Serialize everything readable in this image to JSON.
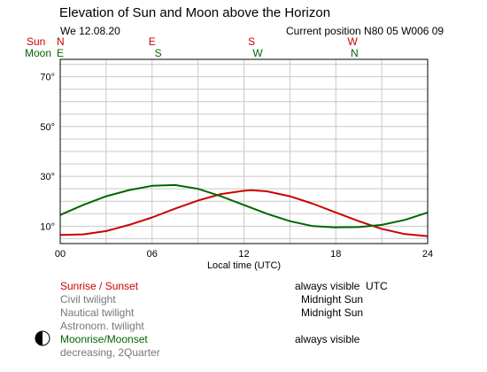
{
  "header": {
    "title": "Elevation of Sun and Moon above the Horizon",
    "date": "We 12.08.20",
    "position": "Current position N80 05 W006 09"
  },
  "direction_rows": {
    "sun_label": "Sun",
    "moon_label": "Moon",
    "sun": [
      {
        "label": "N",
        "hour": 0
      },
      {
        "label": "E",
        "hour": 6
      },
      {
        "label": "S",
        "hour": 12.5
      },
      {
        "label": "W",
        "hour": 19
      }
    ],
    "moon": [
      {
        "label": "E",
        "hour": 0
      },
      {
        "label": "S",
        "hour": 6.4
      },
      {
        "label": "W",
        "hour": 12.8
      },
      {
        "label": "N",
        "hour": 19.2
      }
    ]
  },
  "chart_data": {
    "type": "line",
    "title": "Elevation of Sun and Moon above the Horizon",
    "xlabel": "Local time (UTC)",
    "ylabel": "",
    "xlim": [
      0,
      24
    ],
    "ylim": [
      3,
      77
    ],
    "xticks": [
      0,
      6,
      12,
      18,
      24
    ],
    "xtick_labels": [
      "00",
      "06",
      "12",
      "18",
      "24"
    ],
    "yticks": [
      10,
      30,
      50,
      70
    ],
    "ytick_labels": [
      "10°",
      "30°",
      "50°",
      "70°"
    ],
    "grid": true,
    "legend": "none",
    "series": [
      {
        "name": "Sun",
        "color": "#cc0000",
        "x": [
          0,
          1.5,
          3,
          4.5,
          6,
          7.5,
          9,
          10.5,
          12,
          12.5,
          13.5,
          15,
          16.5,
          18,
          19.5,
          21,
          22.5,
          24
        ],
        "y": [
          6.5,
          6.7,
          8.0,
          10.5,
          13.5,
          17.0,
          20.3,
          22.9,
          24.2,
          24.4,
          24.0,
          22.0,
          19.0,
          15.5,
          12.0,
          8.9,
          6.8,
          6.0
        ]
      },
      {
        "name": "Moon",
        "color": "#006600",
        "x": [
          0,
          1.5,
          3,
          4.5,
          6,
          7.5,
          9,
          10.5,
          12,
          13.5,
          15,
          16.5,
          18,
          19.5,
          21,
          22.5,
          24
        ],
        "y": [
          14.5,
          18.5,
          22.0,
          24.5,
          26.2,
          26.5,
          25.0,
          22.0,
          18.5,
          15.0,
          12.0,
          10.0,
          9.5,
          9.6,
          10.5,
          12.5,
          15.5
        ]
      }
    ]
  },
  "legend_block": {
    "sunrise_sunset": "Sunrise / Sunset",
    "sunrise_value": "always visible",
    "timezone": "UTC",
    "civil": "Civil twilight",
    "civil_value": "Midnight Sun",
    "nautical": "Nautical twilight",
    "nautical_value": "Midnight Sun",
    "astronomical": "Astronom. twilight",
    "moonrise_moonset": "Moonrise/Moonset",
    "moonrise_value": "always visible",
    "moon_phase": "decreasing, 2Quarter"
  }
}
